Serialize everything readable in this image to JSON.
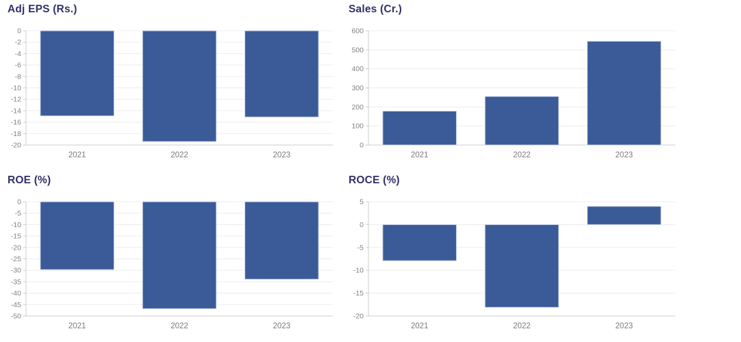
{
  "theme": {
    "bar_color": "#3b5a98",
    "bar_edge_color": "#c9d3ea",
    "grid_color": "#ededed",
    "axis_color": "#cccccc",
    "tick_label_color": "#818181",
    "category_label_color": "#7a7a7a",
    "title_color": "#303169",
    "background": "#ffffff"
  },
  "chart_data": [
    {
      "type": "bar",
      "title": "Adj EPS (Rs.)",
      "categories": [
        "2021",
        "2022",
        "2023"
      ],
      "values": [
        -14.9,
        -19.4,
        -15.1
      ],
      "ylim": [
        -20,
        0
      ],
      "ytick_step": 2,
      "grid": "horizontal",
      "legend": "none"
    },
    {
      "type": "bar",
      "title": "Sales (Cr.)",
      "categories": [
        "2021",
        "2022",
        "2023"
      ],
      "values": [
        178,
        255,
        545
      ],
      "ylim": [
        0,
        600
      ],
      "ytick_step": 100,
      "grid": "horizontal",
      "legend": "none"
    },
    {
      "type": "bar",
      "title": "ROE (%)",
      "categories": [
        "2021",
        "2022",
        "2023"
      ],
      "values": [
        -29.7,
        -46.8,
        -33.9
      ],
      "ylim": [
        -50,
        0
      ],
      "ytick_step": 5,
      "grid": "horizontal",
      "legend": "none"
    },
    {
      "type": "bar",
      "title": "ROCE (%)",
      "categories": [
        "2021",
        "2022",
        "2023"
      ],
      "values": [
        -7.9,
        -18.1,
        4.0
      ],
      "ylim": [
        -20,
        5
      ],
      "ytick_step": 5,
      "grid": "horizontal",
      "legend": "none"
    }
  ]
}
